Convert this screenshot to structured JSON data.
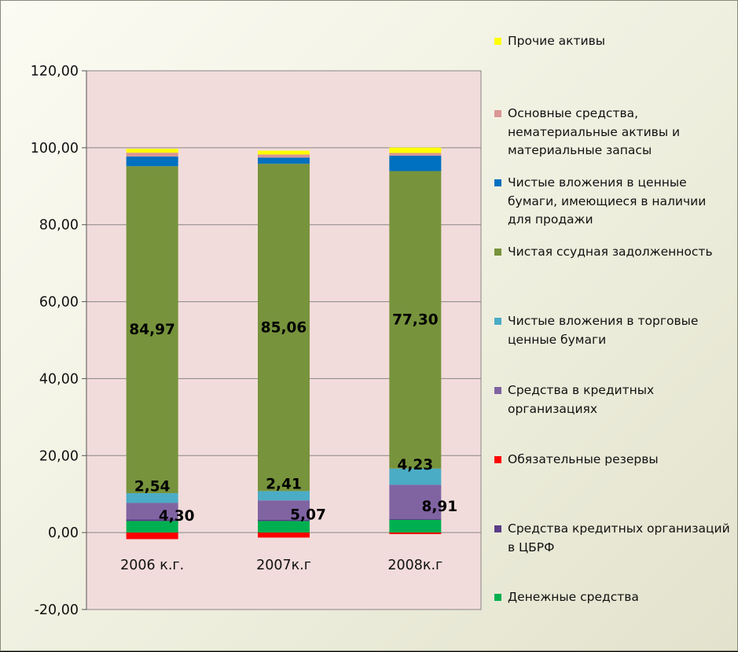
{
  "chart_data": {
    "type": "bar",
    "stacked": true,
    "categories": [
      "2006 к.г.",
      "2007к.г",
      "2008к.г"
    ],
    "y_ticks": [
      "-20,00",
      "0,00",
      "20,00",
      "40,00",
      "60,00",
      "80,00",
      "100,00",
      "120,00"
    ],
    "ylim": [
      -20,
      120
    ],
    "grid": true,
    "legend_position": "right",
    "series": [
      {
        "name": "Денежные средства",
        "color": "#00b050",
        "values": [
          3.0,
          3.0,
          3.3
        ]
      },
      {
        "name": "Средства кредитных организаций в ЦБРФ",
        "color": "#5a3c87",
        "values": [
          0.4,
          0.3,
          0.2
        ]
      },
      {
        "name": "Обязательные резервы",
        "color": "#ff0000",
        "values": [
          -1.7,
          -1.3,
          -0.4
        ]
      },
      {
        "name": "Средства в кредитных организациях",
        "color": "#8064a2",
        "values": [
          4.3,
          5.07,
          8.91
        ]
      },
      {
        "name": "Чистые вложения в торговые ценные бумаги",
        "color": "#4bacc6",
        "values": [
          2.54,
          2.41,
          4.23
        ]
      },
      {
        "name": "Чистая ссудная задолженность",
        "color": "#77933c",
        "values": [
          84.97,
          85.06,
          77.3
        ]
      },
      {
        "name": "Чистые вложения в ценные бумаги, имеющиеся в наличии для продажи",
        "color": "#0070c0",
        "values": [
          2.5,
          1.6,
          4.0
        ]
      },
      {
        "name": "Основные средства, нематериальные активы и материальные запасы",
        "color": "#d99694",
        "values": [
          1.0,
          0.8,
          0.7
        ]
      },
      {
        "name": "Прочие активы",
        "color": "#ffff00",
        "values": [
          1.0,
          1.0,
          1.4
        ]
      }
    ],
    "data_labels": [
      {
        "series": "Чистая ссудная задолженность",
        "texts": [
          "84,97",
          "85,06",
          "77,30"
        ]
      },
      {
        "series": "Чистые вложения в торговые ценные бумаги",
        "texts": [
          "2,54",
          "2,41",
          "4,23"
        ]
      },
      {
        "series": "Средства в кредитных организациях",
        "texts": [
          "4,30",
          "5,07",
          "8,91"
        ]
      }
    ]
  },
  "legend": [
    {
      "label": "Прочие активы",
      "color": "#ffff00"
    },
    {
      "label": "Основные средства, нематериальные активы и материальные запасы",
      "color": "#d99694"
    },
    {
      "label": "Чистые вложения в ценные бумаги, имеющиеся в наличии для продажи",
      "color": "#0070c0"
    },
    {
      "label": "Чистая ссудная задолженность",
      "color": "#77933c"
    },
    {
      "label": "Чистые вложения в торговые ценные бумаги",
      "color": "#4bacc6"
    },
    {
      "label": "Средства в кредитных организациях",
      "color": "#8064a2"
    },
    {
      "label": "Обязательные резервы",
      "color": "#ff0000"
    },
    {
      "label": "Средства кредитных организаций в ЦБРФ",
      "color": "#5a3c87"
    },
    {
      "label": "Денежные средства",
      "color": "#00b050"
    }
  ],
  "colors": {
    "plot_background": "#f2dcdb",
    "grid": "#868686"
  }
}
